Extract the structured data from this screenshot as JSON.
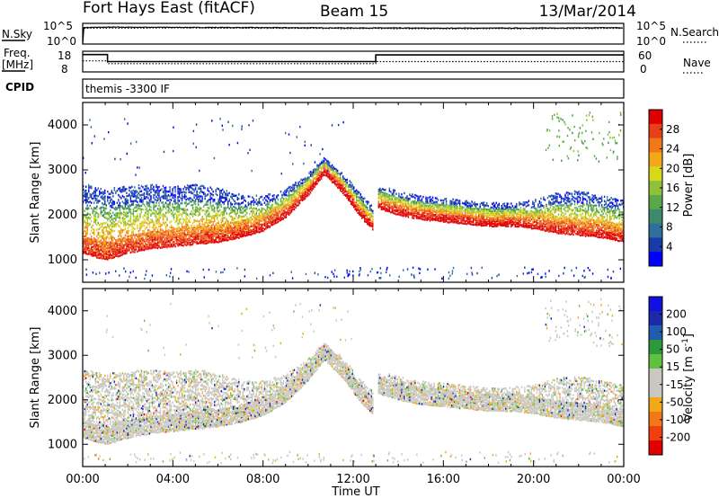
{
  "header": {
    "station": "Fort Hays East (fitACF)",
    "beam": "Beam 15",
    "date": "13/Mar/2014"
  },
  "strip_labels": {
    "nsky": "N.Sky",
    "nsky_top": "10^5",
    "nsky_bottom": "10^0",
    "nsearch": "N.Search",
    "nsearch_top": "10^5",
    "nsearch_bottom": "10^0",
    "freq_line1": "Freq.",
    "freq_line2": "[MHz]",
    "freq_top": "18",
    "freq_bottom": "8",
    "nave": "Nave",
    "nave_top": "60",
    "nave_bottom": "0",
    "cpid": "CPID",
    "program": "themis -3300 IF"
  },
  "chart_data": [
    {
      "type": "line",
      "title": "N.Sky / N.Search",
      "x": [
        0,
        0.05,
        1,
        4,
        8,
        12,
        16,
        20,
        24
      ],
      "series": [
        {
          "name": "N.Sky",
          "values": [
            0,
            10000,
            12000,
            11000,
            9500,
            8000,
            7000,
            7500,
            9000
          ]
        },
        {
          "name": "N.Search",
          "values": [
            0,
            6000,
            7000,
            7500,
            6500,
            5500,
            5000,
            5200,
            6000
          ]
        }
      ],
      "ylim": [
        1,
        100000
      ],
      "log": true
    },
    {
      "type": "line",
      "title": "Freq. / Nave",
      "series": [
        {
          "name": "Freq",
          "x": [
            0,
            1.1,
            1.1,
            13.0,
            13.0,
            24
          ],
          "values": [
            16.4,
            16.4,
            13.0,
            13.0,
            16.2,
            16.2
          ]
        },
        {
          "name": "Nave",
          "x": [
            0,
            1.1,
            1.1,
            13.0,
            13.0,
            24
          ],
          "values": [
            32,
            32,
            24,
            24,
            30,
            30
          ]
        }
      ],
      "ylim_freq": [
        8,
        18
      ],
      "ylim_nave": [
        0,
        60
      ]
    },
    {
      "type": "heatmap",
      "title": "Power",
      "xlabel": "Time UT",
      "ylabel": "Slant Range [km]",
      "xlim": [
        0,
        24
      ],
      "ylim": [
        500,
        4500
      ],
      "xticks": [
        "00:00",
        "04:00",
        "08:00",
        "12:00",
        "16:00",
        "20:00",
        "00:00"
      ],
      "yticks": [
        1000,
        2000,
        3000,
        4000
      ],
      "colorbar": {
        "label": "Power [dB]",
        "ticks": [
          "28",
          "24",
          "20",
          "16",
          "12",
          "8",
          "4"
        ],
        "range": [
          0,
          30
        ]
      },
      "features": [
        {
          "t": [
            0,
            1,
            2,
            3,
            4,
            5,
            6,
            7,
            8,
            9,
            10,
            10.7,
            11.5,
            12.4,
            12.9
          ],
          "inner": [
            1300,
            1150,
            1300,
            1400,
            1450,
            1500,
            1550,
            1650,
            1800,
            2100,
            2600,
            3050,
            2650,
            2050,
            1800
          ],
          "outer": [
            2700,
            2600,
            2650,
            2700,
            2650,
            2700,
            2600,
            2450,
            2450,
            2600,
            2950,
            3300,
            2950,
            2450,
            2200
          ]
        },
        {
          "t": [
            13.1,
            14,
            15,
            16,
            17,
            18,
            19,
            20,
            21,
            22,
            23,
            24
          ],
          "inner": [
            2300,
            2150,
            2050,
            2000,
            1950,
            1900,
            1900,
            1850,
            1750,
            1700,
            1650,
            1550
          ],
          "outer": [
            2650,
            2550,
            2450,
            2400,
            2350,
            2300,
            2300,
            2350,
            2500,
            2550,
            2450,
            2350
          ]
        }
      ]
    },
    {
      "type": "heatmap",
      "title": "Velocity",
      "xlabel": "Time UT",
      "ylabel": "Slant Range [km]",
      "xlim": [
        0,
        24
      ],
      "ylim": [
        500,
        4500
      ],
      "xticks": [
        "00:00",
        "04:00",
        "08:00",
        "12:00",
        "16:00",
        "20:00",
        "00:00"
      ],
      "yticks": [
        1000,
        2000,
        3000,
        4000
      ],
      "colorbar": {
        "label": "Velocity [m s-1]",
        "ticks": [
          "200",
          "100",
          "50",
          "15",
          "-15",
          "-50",
          "-100",
          "-200"
        ],
        "range": [
          -250,
          250
        ]
      }
    }
  ],
  "colors": {
    "power_scale": [
      "#0000ff",
      "#1a3aa8",
      "#2e6f9e",
      "#3c8a6a",
      "#5aa84a",
      "#8fc23a",
      "#d8d81a",
      "#f2a818",
      "#f07818",
      "#e84018",
      "#e00000"
    ],
    "velocity_scale": [
      "#e00000",
      "#f04010",
      "#f07818",
      "#f2a818",
      "#c8c8c0",
      "#c8c8c0",
      "#60c040",
      "#2c9a3c",
      "#205cb0",
      "#1a2aa8",
      "#1010e0"
    ],
    "ground_scatter": "#c8c6be"
  }
}
